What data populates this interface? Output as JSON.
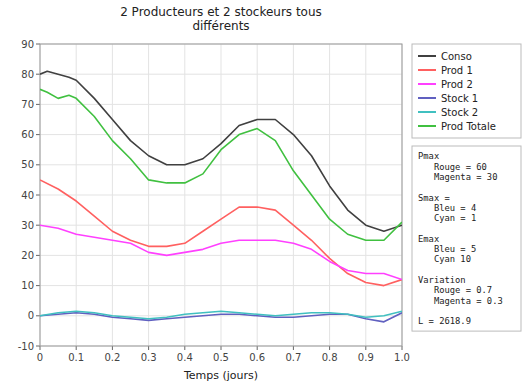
{
  "chart_data": {
    "type": "line",
    "title": "2 Producteurs et 2 stockeurs tous\ndifférents",
    "xlabel": "Temps (jours)",
    "annotation": "Pmax\n   Rouge = 60\n   Magenta = 30\n\nSmax =\n   Bleu = 4\n   Cyan = 1\n\nEmax\n   Bleu = 5\n   Cyan 10\n\nVariation\n   Rouge = 0.7\n   Magenta = 0.3\n\nL = 2618.9",
    "xlim": [
      0,
      1
    ],
    "ylim": [
      -10,
      90
    ],
    "xticks": [
      0,
      0.1,
      0.2,
      0.3,
      0.4,
      0.5,
      0.6,
      0.7,
      0.8,
      0.9,
      {
        "value": 1,
        "label": "1.0"
      }
    ],
    "yticks": [
      -10,
      0,
      10,
      20,
      30,
      40,
      50,
      60,
      70,
      80,
      90
    ],
    "grid": true,
    "legend": "upper right",
    "series": [
      {
        "name": "Conso",
        "color": "#404040",
        "x": [
          0,
          0.02,
          0.05,
          0.08,
          0.1,
          0.15,
          0.2,
          0.25,
          0.3,
          0.35,
          0.4,
          0.45,
          0.5,
          0.55,
          0.6,
          0.65,
          0.7,
          0.75,
          0.8,
          0.85,
          0.9,
          0.95,
          1.0
        ],
        "values": [
          80,
          81,
          80,
          79,
          78,
          72,
          65,
          58,
          53,
          50,
          50,
          52,
          57,
          63,
          65,
          65,
          60,
          53,
          43,
          35,
          30,
          28,
          30
        ]
      },
      {
        "name": "Prod 1",
        "color": "#ff6060",
        "x": [
          0,
          0.05,
          0.1,
          0.15,
          0.2,
          0.25,
          0.3,
          0.35,
          0.4,
          0.45,
          0.5,
          0.55,
          0.6,
          0.65,
          0.7,
          0.75,
          0.8,
          0.85,
          0.9,
          0.95,
          1.0
        ],
        "values": [
          45,
          42,
          38,
          33,
          28,
          25,
          23,
          23,
          24,
          28,
          32,
          36,
          36,
          35,
          30,
          25,
          19,
          14,
          11,
          10,
          12
        ]
      },
      {
        "name": "Prod 2",
        "color": "#ff40ff",
        "x": [
          0,
          0.05,
          0.1,
          0.15,
          0.2,
          0.25,
          0.3,
          0.35,
          0.4,
          0.45,
          0.5,
          0.55,
          0.6,
          0.65,
          0.7,
          0.75,
          0.8,
          0.85,
          0.9,
          0.95,
          1.0
        ],
        "values": [
          30,
          29,
          27,
          26,
          25,
          24,
          21,
          20,
          21,
          22,
          24,
          25,
          25,
          25,
          24,
          22,
          18,
          15,
          14,
          14,
          12
        ]
      },
      {
        "name": "Stock 1",
        "color": "#6060c0",
        "x": [
          0,
          0.05,
          0.1,
          0.15,
          0.2,
          0.25,
          0.3,
          0.35,
          0.4,
          0.45,
          0.5,
          0.55,
          0.6,
          0.65,
          0.7,
          0.75,
          0.8,
          0.85,
          0.9,
          0.95,
          1.0
        ],
        "values": [
          0,
          0.5,
          1.0,
          0.5,
          -0.5,
          -1.0,
          -1.5,
          -1.0,
          -0.5,
          0.0,
          0.5,
          0.5,
          0.0,
          -0.5,
          -0.5,
          0.0,
          0.5,
          0.5,
          -1.0,
          -2.0,
          1.0
        ]
      },
      {
        "name": "Stock 2",
        "color": "#40c0c0",
        "x": [
          0,
          0.05,
          0.1,
          0.15,
          0.2,
          0.25,
          0.3,
          0.35,
          0.4,
          0.45,
          0.5,
          0.55,
          0.6,
          0.65,
          0.7,
          0.75,
          0.8,
          0.85,
          0.9,
          0.95,
          1.0
        ],
        "values": [
          0,
          1.0,
          1.5,
          1.0,
          0.0,
          -0.5,
          -1.0,
          -0.5,
          0.5,
          1.0,
          1.5,
          1.0,
          0.5,
          0.0,
          0.5,
          1.0,
          1.0,
          0.5,
          -0.5,
          0.0,
          1.5
        ]
      },
      {
        "name": "Prod Totale",
        "color": "#40c040",
        "x": [
          0,
          0.02,
          0.05,
          0.08,
          0.1,
          0.15,
          0.2,
          0.25,
          0.3,
          0.35,
          0.4,
          0.45,
          0.5,
          0.55,
          0.6,
          0.65,
          0.7,
          0.75,
          0.8,
          0.85,
          0.9,
          0.95,
          1.0
        ],
        "values": [
          75,
          74,
          72,
          73,
          72,
          66,
          58,
          52,
          45,
          44,
          44,
          47,
          55,
          60,
          62,
          58,
          48,
          40,
          32,
          27,
          25,
          25,
          31
        ]
      }
    ]
  }
}
